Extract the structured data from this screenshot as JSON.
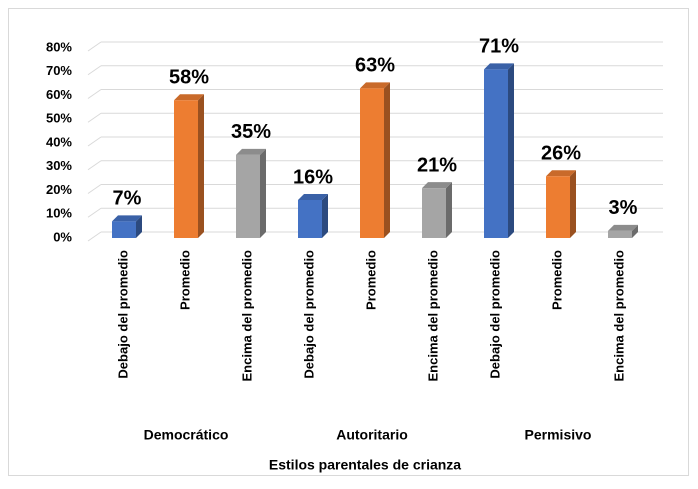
{
  "chart_data": {
    "type": "bar3d",
    "categories": [
      "Debajo del promedio",
      "Promedio",
      "Encima del promedio",
      "Debajo del promedio",
      "Promedio",
      "Encima del promedio",
      "Debajo del promedio",
      "Promedio",
      "Encima del promedio"
    ],
    "groups": [
      "Democrático",
      "Autoritario",
      "Permisivo"
    ],
    "values": [
      7,
      58,
      35,
      16,
      63,
      21,
      71,
      26,
      3
    ],
    "value_labels": [
      "7%",
      "58%",
      "35%",
      "16%",
      "63%",
      "21%",
      "71%",
      "26%",
      "3%"
    ],
    "colors": [
      "#4472c4",
      "#ed7d31",
      "#a5a5a5",
      "#4472c4",
      "#ed7d31",
      "#a5a5a5",
      "#4472c4",
      "#ed7d31",
      "#a5a5a5"
    ],
    "xlabel": "Estilos parentales de crianza",
    "ylim": [
      0,
      80
    ],
    "yticks": [
      {
        "value": 0,
        "label": "0%"
      },
      {
        "value": 10,
        "label": "10%"
      },
      {
        "value": 20,
        "label": "20%"
      },
      {
        "value": 30,
        "label": "30%"
      },
      {
        "value": 40,
        "label": "40%"
      },
      {
        "value": 50,
        "label": "50%"
      },
      {
        "value": 60,
        "label": "60%"
      },
      {
        "value": 70,
        "label": "70%"
      },
      {
        "value": 80,
        "label": "80%"
      }
    ],
    "grid": true
  }
}
